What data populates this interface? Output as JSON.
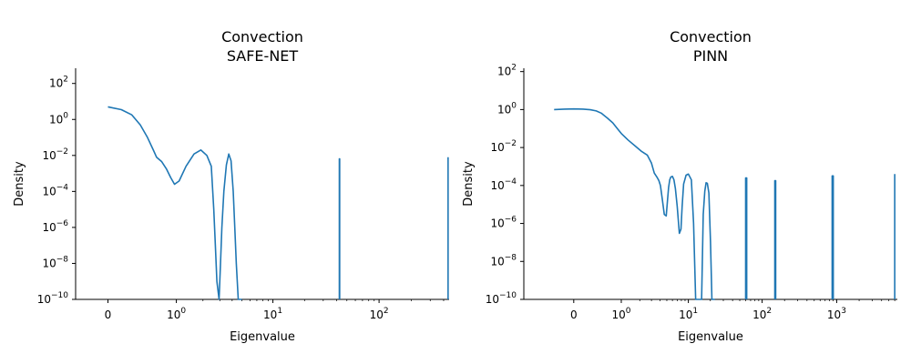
{
  "chart_data": [
    {
      "type": "line",
      "title": "Convection",
      "subtitle": "SAFE-NET",
      "xlabel": "Eigenvalue",
      "ylabel": "Density",
      "xscale": "symlog",
      "yscale": "log",
      "xticks": [
        {
          "value": 0,
          "base": "0",
          "exp": ""
        },
        {
          "value": 1,
          "base": "10",
          "exp": "0"
        },
        {
          "value": 10,
          "base": "10",
          "exp": "1"
        },
        {
          "value": 100,
          "base": "10",
          "exp": "2"
        }
      ],
      "yticks": [
        {
          "value": 100.0,
          "base": "10",
          "exp": "2"
        },
        {
          "value": 1.0,
          "base": "10",
          "exp": "0"
        },
        {
          "value": 0.01,
          "base": "10",
          "exp": "−2"
        },
        {
          "value": 0.0001,
          "base": "10",
          "exp": "−4"
        },
        {
          "value": 1e-06,
          "base": "10",
          "exp": "−6"
        },
        {
          "value": 1e-08,
          "base": "10",
          "exp": "−8"
        },
        {
          "value": 1e-10,
          "base": "10",
          "exp": "−10"
        }
      ],
      "xlim": [
        -0.3,
        450
      ],
      "ylim": [
        1e-10,
        700
      ],
      "color": "#1f77b4",
      "series": [
        {
          "x": [
            0,
            0.1,
            0.2,
            0.3,
            0.4,
            0.5,
            0.55,
            0.65,
            0.75,
            0.85,
            0.95,
            1.08,
            1.3,
            1.6,
            1.9,
            2.2,
            2.45,
            2.6,
            2.7,
            2.8,
            2.95,
            3.05,
            3.15,
            3.3,
            3.5,
            3.7,
            3.9,
            4.1,
            4.25,
            4.4,
            4.6,
            4.85,
            5.0
          ],
          "y": [
            5,
            3.5,
            1.8,
            0.5,
            0.1,
            0.018,
            0.008,
            0.0045,
            0.0018,
            0.0006,
            0.00025,
            0.00038,
            0.0025,
            0.012,
            0.02,
            0.01,
            0.0025,
            1e-05,
            1e-07,
            1e-09,
            1e-10,
            1e-08,
            1e-06,
            0.0001,
            0.003,
            0.012,
            0.005,
            0.0001,
            1e-06,
            1e-08,
            1e-10,
            1e-10,
            1e-10
          ]
        },
        {
          "x": [
            42.5,
            42.5,
            42.8,
            42.8
          ],
          "y": [
            1e-10,
            0.0065,
            0.0065,
            1e-10
          ]
        },
        {
          "x": [
            440,
            440
          ],
          "y": [
            1e-10,
            0.008
          ]
        }
      ]
    },
    {
      "type": "line",
      "title": "Convection",
      "subtitle": "PINN",
      "xlabel": "Eigenvalue",
      "ylabel": "Density",
      "xscale": "symlog",
      "yscale": "log",
      "xticks": [
        {
          "value": 0,
          "base": "0",
          "exp": ""
        },
        {
          "value": 1,
          "base": "10",
          "exp": "0"
        },
        {
          "value": 10,
          "base": "10",
          "exp": "1"
        },
        {
          "value": 100,
          "base": "10",
          "exp": "2"
        },
        {
          "value": 1000,
          "base": "10",
          "exp": "3"
        }
      ],
      "yticks": [
        {
          "value": 100.0,
          "base": "10",
          "exp": "2"
        },
        {
          "value": 1.0,
          "base": "10",
          "exp": "0"
        },
        {
          "value": 0.01,
          "base": "10",
          "exp": "−2"
        },
        {
          "value": 0.0001,
          "base": "10",
          "exp": "−4"
        },
        {
          "value": 1e-06,
          "base": "10",
          "exp": "−6"
        },
        {
          "value": 1e-08,
          "base": "10",
          "exp": "−8"
        },
        {
          "value": 1e-10,
          "base": "10",
          "exp": "−10"
        }
      ],
      "xlim": [
        -1.1,
        6500
      ],
      "ylim": [
        1e-10,
        150
      ],
      "color": "#1f77b4",
      "series": [
        {
          "x": [
            -0.25,
            -0.1,
            0,
            0.1,
            0.2,
            0.3,
            0.4,
            0.55,
            0.7,
            0.85,
            1.0,
            1.3,
            1.7,
            2.1,
            2.6,
            3.0,
            3.3,
            3.6,
            3.85,
            4.05,
            4.3,
            4.6,
            4.9,
            5.1,
            5.3,
            5.5,
            5.7,
            6.0,
            6.3,
            6.6,
            7.0,
            7.5,
            7.9,
            8.2,
            8.6,
            9.3,
            10.0,
            11.0,
            11.8,
            12.6,
            13.5,
            14.4,
            15.2,
            16.0,
            16.8,
            17.5,
            18.2,
            19.1,
            20.1,
            21.0,
            21.6,
            22.3,
            23.0
          ],
          "y": [
            1.0,
            1.05,
            1.08,
            1.05,
            0.98,
            0.85,
            0.65,
            0.35,
            0.2,
            0.1,
            0.055,
            0.025,
            0.012,
            0.0065,
            0.004,
            0.0015,
            0.00045,
            0.00028,
            0.00018,
            0.0001,
            2e-05,
            3e-06,
            2.5e-06,
            1.5e-05,
            8e-05,
            0.0002,
            0.00028,
            0.0003,
            0.0002,
            7e-05,
            8e-06,
            3e-07,
            5e-07,
            8e-06,
            0.00012,
            0.00035,
            0.0004,
            0.0002,
            1e-06,
            1e-10,
            1e-10,
            1e-10,
            1e-10,
            3e-06,
            5e-05,
            0.00014,
            0.00013,
            4e-05,
            1e-07,
            1e-10,
            1e-10,
            1e-10,
            1e-10
          ]
        },
        {
          "x": [
            60,
            60,
            62,
            62
          ],
          "y": [
            1e-10,
            0.00025,
            0.00025,
            1e-10
          ]
        },
        {
          "x": [
            148,
            148,
            152,
            152
          ],
          "y": [
            1e-10,
            0.00018,
            0.00018,
            1e-10
          ]
        },
        {
          "x": [
            870,
            870,
            900,
            900
          ],
          "y": [
            1e-10,
            0.00032,
            0.00032,
            1e-10
          ]
        },
        {
          "x": [
            6000,
            6000
          ],
          "y": [
            1e-10,
            0.0004
          ]
        }
      ]
    }
  ]
}
